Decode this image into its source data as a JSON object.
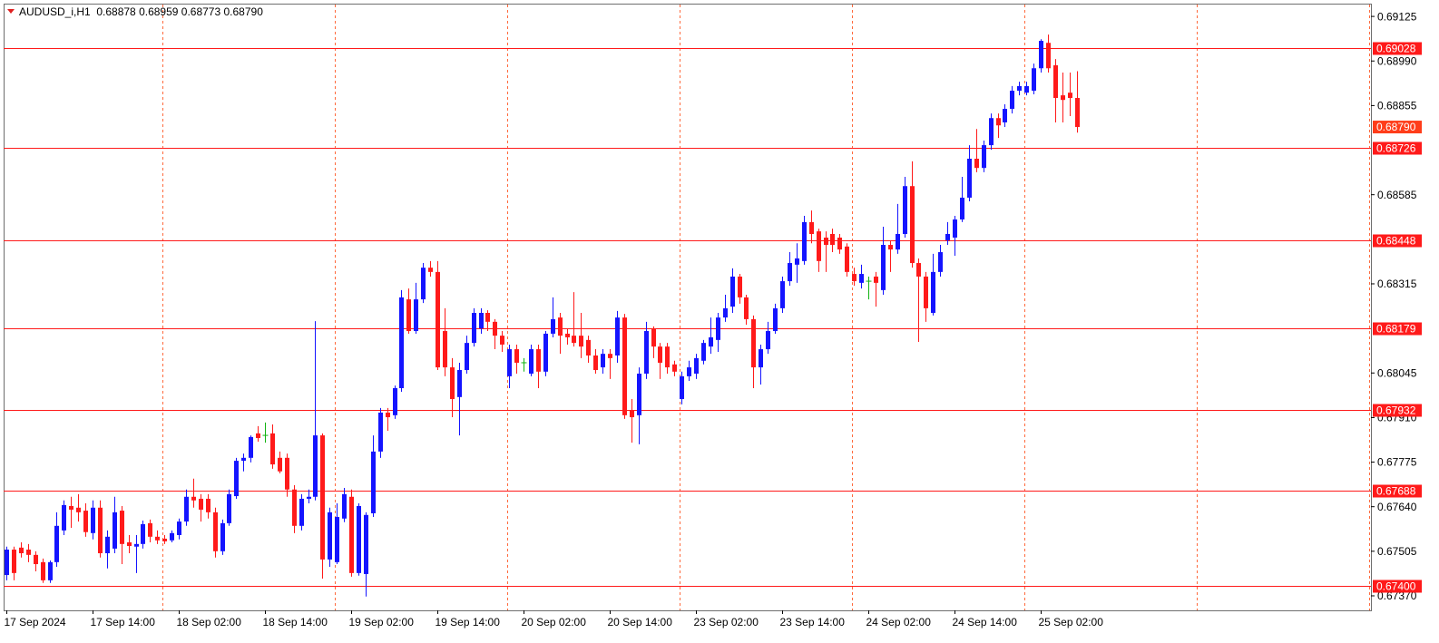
{
  "chart_data": {
    "type": "candlestick",
    "title": "AUDUSD_i,H1  0.68878 0.68959 0.68773 0.68790",
    "categories": [
      "17 Sep 2024",
      null,
      null,
      null,
      null,
      null,
      null,
      null,
      null,
      null,
      null,
      null,
      "17 Sep 14:00",
      null,
      null,
      null,
      null,
      null,
      null,
      null,
      null,
      null,
      null,
      null,
      "18 Sep 02:00",
      null,
      null,
      null,
      null,
      null,
      null,
      null,
      null,
      null,
      null,
      null,
      "18 Sep 14:00",
      null,
      null,
      null,
      null,
      null,
      null,
      null,
      null,
      null,
      null,
      null,
      "19 Sep 02:00",
      null,
      null,
      null,
      null,
      null,
      null,
      null,
      null,
      null,
      null,
      null,
      "19 Sep 14:00",
      null,
      null,
      null,
      null,
      null,
      null,
      null,
      null,
      null,
      null,
      null,
      "20 Sep 02:00",
      null,
      null,
      null,
      null,
      null,
      null,
      null,
      null,
      null,
      null,
      null,
      "20 Sep 14:00",
      null,
      null,
      null,
      null,
      null,
      null,
      null,
      null,
      null,
      null,
      null,
      "23 Sep 02:00",
      null,
      null,
      null,
      null,
      null,
      null,
      null,
      null,
      null,
      null,
      null,
      "23 Sep 14:00",
      null,
      null,
      null,
      null,
      null,
      null,
      null,
      null,
      null,
      null,
      null,
      "24 Sep 02:00",
      null,
      null,
      null,
      null,
      null,
      null,
      null,
      null,
      null,
      null,
      null,
      "24 Sep 14:00",
      null,
      null,
      null,
      null,
      null,
      null,
      null,
      null,
      null,
      null,
      null,
      "25 Sep 02:00",
      null,
      null,
      null,
      null,
      null
    ],
    "open": [
      0.67433,
      0.6751,
      0.67516,
      0.6751,
      0.67494,
      0.67472,
      0.67417,
      0.67472,
      0.67568,
      0.67642,
      0.67637,
      0.67628,
      0.6756,
      0.67637,
      0.67499,
      0.67513,
      0.67628,
      0.67532,
      0.67519,
      0.67527,
      0.6759,
      0.67549,
      0.67543,
      0.67538,
      0.67554,
      0.67595,
      0.6767,
      0.67664,
      0.67664,
      0.67623,
      0.67505,
      0.6759,
      0.67672,
      0.67779,
      0.67788,
      0.67862,
      0.67856,
      0.67862,
      0.67788,
      0.67788,
      0.67692,
      0.67582,
      0.67664,
      0.6767,
      0.67856,
      0.6748,
      0.67472,
      0.67604,
      0.6767,
      0.67439,
      0.67436,
      0.6762,
      0.67807,
      0.67925,
      0.67917,
      0.67999,
      0.68268,
      0.68172,
      0.68268,
      0.68364,
      0.68351,
      0.68172,
      0.68062,
      0.67972,
      0.68054,
      0.68136,
      0.6818,
      0.68227,
      0.682,
      0.68158,
      0.68035,
      0.68117,
      0.68076,
      0.68043,
      0.68117,
      0.68049,
      0.68164,
      0.68213,
      0.68164,
      0.68158,
      0.68158,
      0.68145,
      0.68098,
      0.68062,
      0.68103,
      0.68098,
      0.68213,
      0.67933,
      0.67917,
      0.68043,
      0.6818,
      0.68125,
      0.68125,
      0.68071,
      0.67966,
      0.68035,
      0.68043,
      0.68082,
      0.68125,
      0.68145,
      0.68213,
      0.68246,
      0.68337,
      0.68274,
      0.68208,
      0.68062,
      0.68117,
      0.68172,
      0.68241,
      0.68323,
      0.68373,
      0.68384,
      0.68502,
      0.68474,
      0.68455,
      0.68466,
      0.68455,
      0.68428,
      0.68345,
      0.68318,
      0.68323,
      0.68337,
      0.68296,
      0.68433,
      0.68419,
      0.68466,
      0.68611,
      0.68378,
      0.68337,
      0.68227,
      0.68351,
      0.68447,
      0.68455,
      0.6851,
      0.68576,
      0.68694,
      0.68666,
      0.68735,
      0.68817,
      0.68804,
      0.68845,
      0.689,
      0.68894,
      0.689,
      0.68968,
      0.69045,
      0.68977,
      0.68886,
      0.68894,
      0.68878
    ],
    "high": [
      0.67519,
      0.67519,
      0.67532,
      0.67527,
      0.67505,
      0.67483,
      0.67477,
      0.67623,
      0.67659,
      0.6767,
      0.67678,
      0.6765,
      0.67659,
      0.67659,
      0.67568,
      0.6767,
      0.67642,
      0.67554,
      0.67554,
      0.67598,
      0.67601,
      0.67568,
      0.67554,
      0.67568,
      0.67604,
      0.67692,
      0.67725,
      0.67678,
      0.67678,
      0.67637,
      0.67601,
      0.67692,
      0.67788,
      0.67801,
      0.67856,
      0.67884,
      0.67895,
      0.67889,
      0.67807,
      0.67801,
      0.67705,
      0.67678,
      0.67692,
      0.68202,
      0.67862,
      0.67637,
      0.6765,
      0.67697,
      0.67692,
      0.6765,
      0.67623,
      0.67856,
      0.67939,
      0.67939,
      0.68007,
      0.68296,
      0.68301,
      0.68318,
      0.68378,
      0.68384,
      0.68384,
      0.68241,
      0.6809,
      0.68076,
      0.68158,
      0.68241,
      0.68241,
      0.68235,
      0.68208,
      0.68172,
      0.68131,
      0.68131,
      0.6809,
      0.68131,
      0.68131,
      0.68172,
      0.68274,
      0.68227,
      0.6818,
      0.6829,
      0.68227,
      0.68158,
      0.68117,
      0.68117,
      0.68117,
      0.68233,
      0.68224,
      0.67966,
      0.68062,
      0.682,
      0.68186,
      0.68136,
      0.68136,
      0.68082,
      0.68049,
      0.68082,
      0.68103,
      0.68145,
      0.68213,
      0.68227,
      0.68282,
      0.68362,
      0.68345,
      0.68282,
      0.68219,
      0.68131,
      0.682,
      0.68255,
      0.68337,
      0.68411,
      0.68438,
      0.68521,
      0.68537,
      0.68482,
      0.68474,
      0.68482,
      0.68466,
      0.68438,
      0.68364,
      0.68373,
      0.68337,
      0.68351,
      0.68488,
      0.68447,
      0.68557,
      0.68639,
      0.68686,
      0.68392,
      0.68351,
      0.68406,
      0.68433,
      0.68502,
      0.68521,
      0.68639,
      0.68735,
      0.68784,
      0.68749,
      0.68831,
      0.68831,
      0.68859,
      0.68914,
      0.68927,
      0.68927,
      0.68982,
      0.69056,
      0.6907,
      0.68996,
      0.68955,
      0.68955,
      0.68959
    ],
    "low": [
      0.67417,
      0.67417,
      0.67486,
      0.67472,
      0.67444,
      0.67409,
      0.67409,
      0.67458,
      0.67554,
      0.67576,
      0.67595,
      0.67549,
      0.67541,
      0.67486,
      0.67453,
      0.67499,
      0.67466,
      0.67499,
      0.67439,
      0.67513,
      0.67532,
      0.67527,
      0.67527,
      0.67532,
      0.67541,
      0.67582,
      0.67637,
      0.67595,
      0.67604,
      0.67486,
      0.67494,
      0.67582,
      0.67664,
      0.67747,
      0.67774,
      0.67837,
      0.67834,
      0.67755,
      0.67741,
      0.6767,
      0.6756,
      0.67568,
      0.6765,
      0.67659,
      0.67422,
      0.67458,
      0.67466,
      0.67593,
      0.67428,
      0.67431,
      0.67368,
      0.67609,
      0.67788,
      0.6787,
      0.67906,
      0.67988,
      0.68164,
      0.68164,
      0.68257,
      0.68337,
      0.68054,
      0.68035,
      0.67911,
      0.67856,
      0.68043,
      0.68125,
      0.68164,
      0.68172,
      0.68117,
      0.68109,
      0.67999,
      0.68043,
      0.68049,
      0.68035,
      0.67999,
      0.68035,
      0.68153,
      0.68103,
      0.68131,
      0.68125,
      0.6809,
      0.68076,
      0.68043,
      0.68043,
      0.68027,
      0.68076,
      0.67906,
      0.67834,
      0.67829,
      0.68027,
      0.6809,
      0.68027,
      0.68043,
      0.68035,
      0.6795,
      0.68021,
      0.68027,
      0.68071,
      0.68103,
      0.68109,
      0.682,
      0.68227,
      0.68255,
      0.68191,
      0.67999,
      0.6801,
      0.68103,
      0.68164,
      0.68227,
      0.68309,
      0.68318,
      0.68373,
      0.68438,
      0.68351,
      0.68351,
      0.68411,
      0.68406,
      0.68337,
      0.68309,
      0.68301,
      0.68268,
      0.68246,
      0.68282,
      0.68351,
      0.68406,
      0.68455,
      0.68364,
      0.68139,
      0.682,
      0.68219,
      0.68337,
      0.68433,
      0.684,
      0.68502,
      0.68565,
      0.68653,
      0.68653,
      0.68721,
      0.68757,
      0.6879,
      0.68831,
      0.68886,
      0.68886,
      0.68889,
      0.68955,
      0.68955,
      0.68804,
      0.68804,
      0.68823,
      0.68773
    ],
    "close": [
      0.6751,
      0.67439,
      0.67499,
      0.67494,
      0.67466,
      0.67417,
      0.67472,
      0.67582,
      0.67645,
      0.67631,
      0.67623,
      0.67563,
      0.67637,
      0.67499,
      0.67549,
      0.67623,
      0.67527,
      0.67521,
      0.67527,
      0.67587,
      0.67549,
      0.67538,
      0.67535,
      0.6756,
      0.67595,
      0.6767,
      0.67659,
      0.67631,
      0.67623,
      0.67505,
      0.6759,
      0.67678,
      0.67779,
      0.67788,
      0.67851,
      0.67848,
      0.67856,
      0.67768,
      0.67747,
      0.67692,
      0.67582,
      0.67664,
      0.6767,
      0.67856,
      0.6748,
      0.67623,
      0.67609,
      0.67678,
      0.67439,
      0.67642,
      0.67615,
      0.67807,
      0.67925,
      0.67911,
      0.67999,
      0.68274,
      0.68172,
      0.68268,
      0.68364,
      0.68351,
      0.68062,
      0.68062,
      0.67966,
      0.68054,
      0.68136,
      0.68227,
      0.68227,
      0.682,
      0.68158,
      0.68131,
      0.68117,
      0.68076,
      0.68076,
      0.68117,
      0.68049,
      0.68164,
      0.68208,
      0.68158,
      0.68153,
      0.68136,
      0.68125,
      0.68098,
      0.68054,
      0.68103,
      0.6809,
      0.68213,
      0.67917,
      0.67911,
      0.68043,
      0.68172,
      0.68125,
      0.68076,
      0.68062,
      0.68049,
      0.68035,
      0.68062,
      0.6809,
      0.68136,
      0.68153,
      0.68213,
      0.68241,
      0.68337,
      0.68274,
      0.68208,
      0.68062,
      0.68117,
      0.68172,
      0.68241,
      0.68323,
      0.68378,
      0.68392,
      0.68502,
      0.68466,
      0.68384,
      0.68433,
      0.68433,
      0.68419,
      0.68351,
      0.68323,
      0.68345,
      0.68323,
      0.68318,
      0.68433,
      0.68419,
      0.68466,
      0.68611,
      0.68378,
      0.68337,
      0.68241,
      0.68351,
      0.68411,
      0.68466,
      0.6851,
      0.68576,
      0.68694,
      0.68666,
      0.68735,
      0.68817,
      0.68795,
      0.68845,
      0.689,
      0.68914,
      0.68914,
      0.68968,
      0.69051,
      0.68968,
      0.68878,
      0.68872,
      0.68878,
      0.6879
    ],
    "colors": {
      "bull": "#1414ff",
      "bear": "#ff1a1a",
      "doji": "#12b312",
      "level": "#ff1a1a",
      "current": "#ff3d1a",
      "separator": "#ff6a3d"
    },
    "ylim": [
      0.67326,
      0.69161
    ],
    "yticks": [
      0.69125,
      {
        "value": 0.6899,
        "label": "0.68990"
      },
      0.68855,
      0.68585,
      0.68315,
      0.68045,
      {
        "value": 0.6791,
        "label": "0.67910"
      },
      0.67775,
      {
        "value": 0.6764,
        "label": "0.67640"
      },
      0.67505,
      {
        "value": 0.6737,
        "label": "0.67370"
      }
    ],
    "levels": [
      0.69028,
      0.68726,
      0.68448,
      0.68179,
      0.67932,
      0.67688,
      {
        "value": 0.674,
        "label": "0.67400"
      }
    ],
    "current_price": {
      "value": 0.6879,
      "label": "0.68790"
    },
    "period_separators": true
  }
}
